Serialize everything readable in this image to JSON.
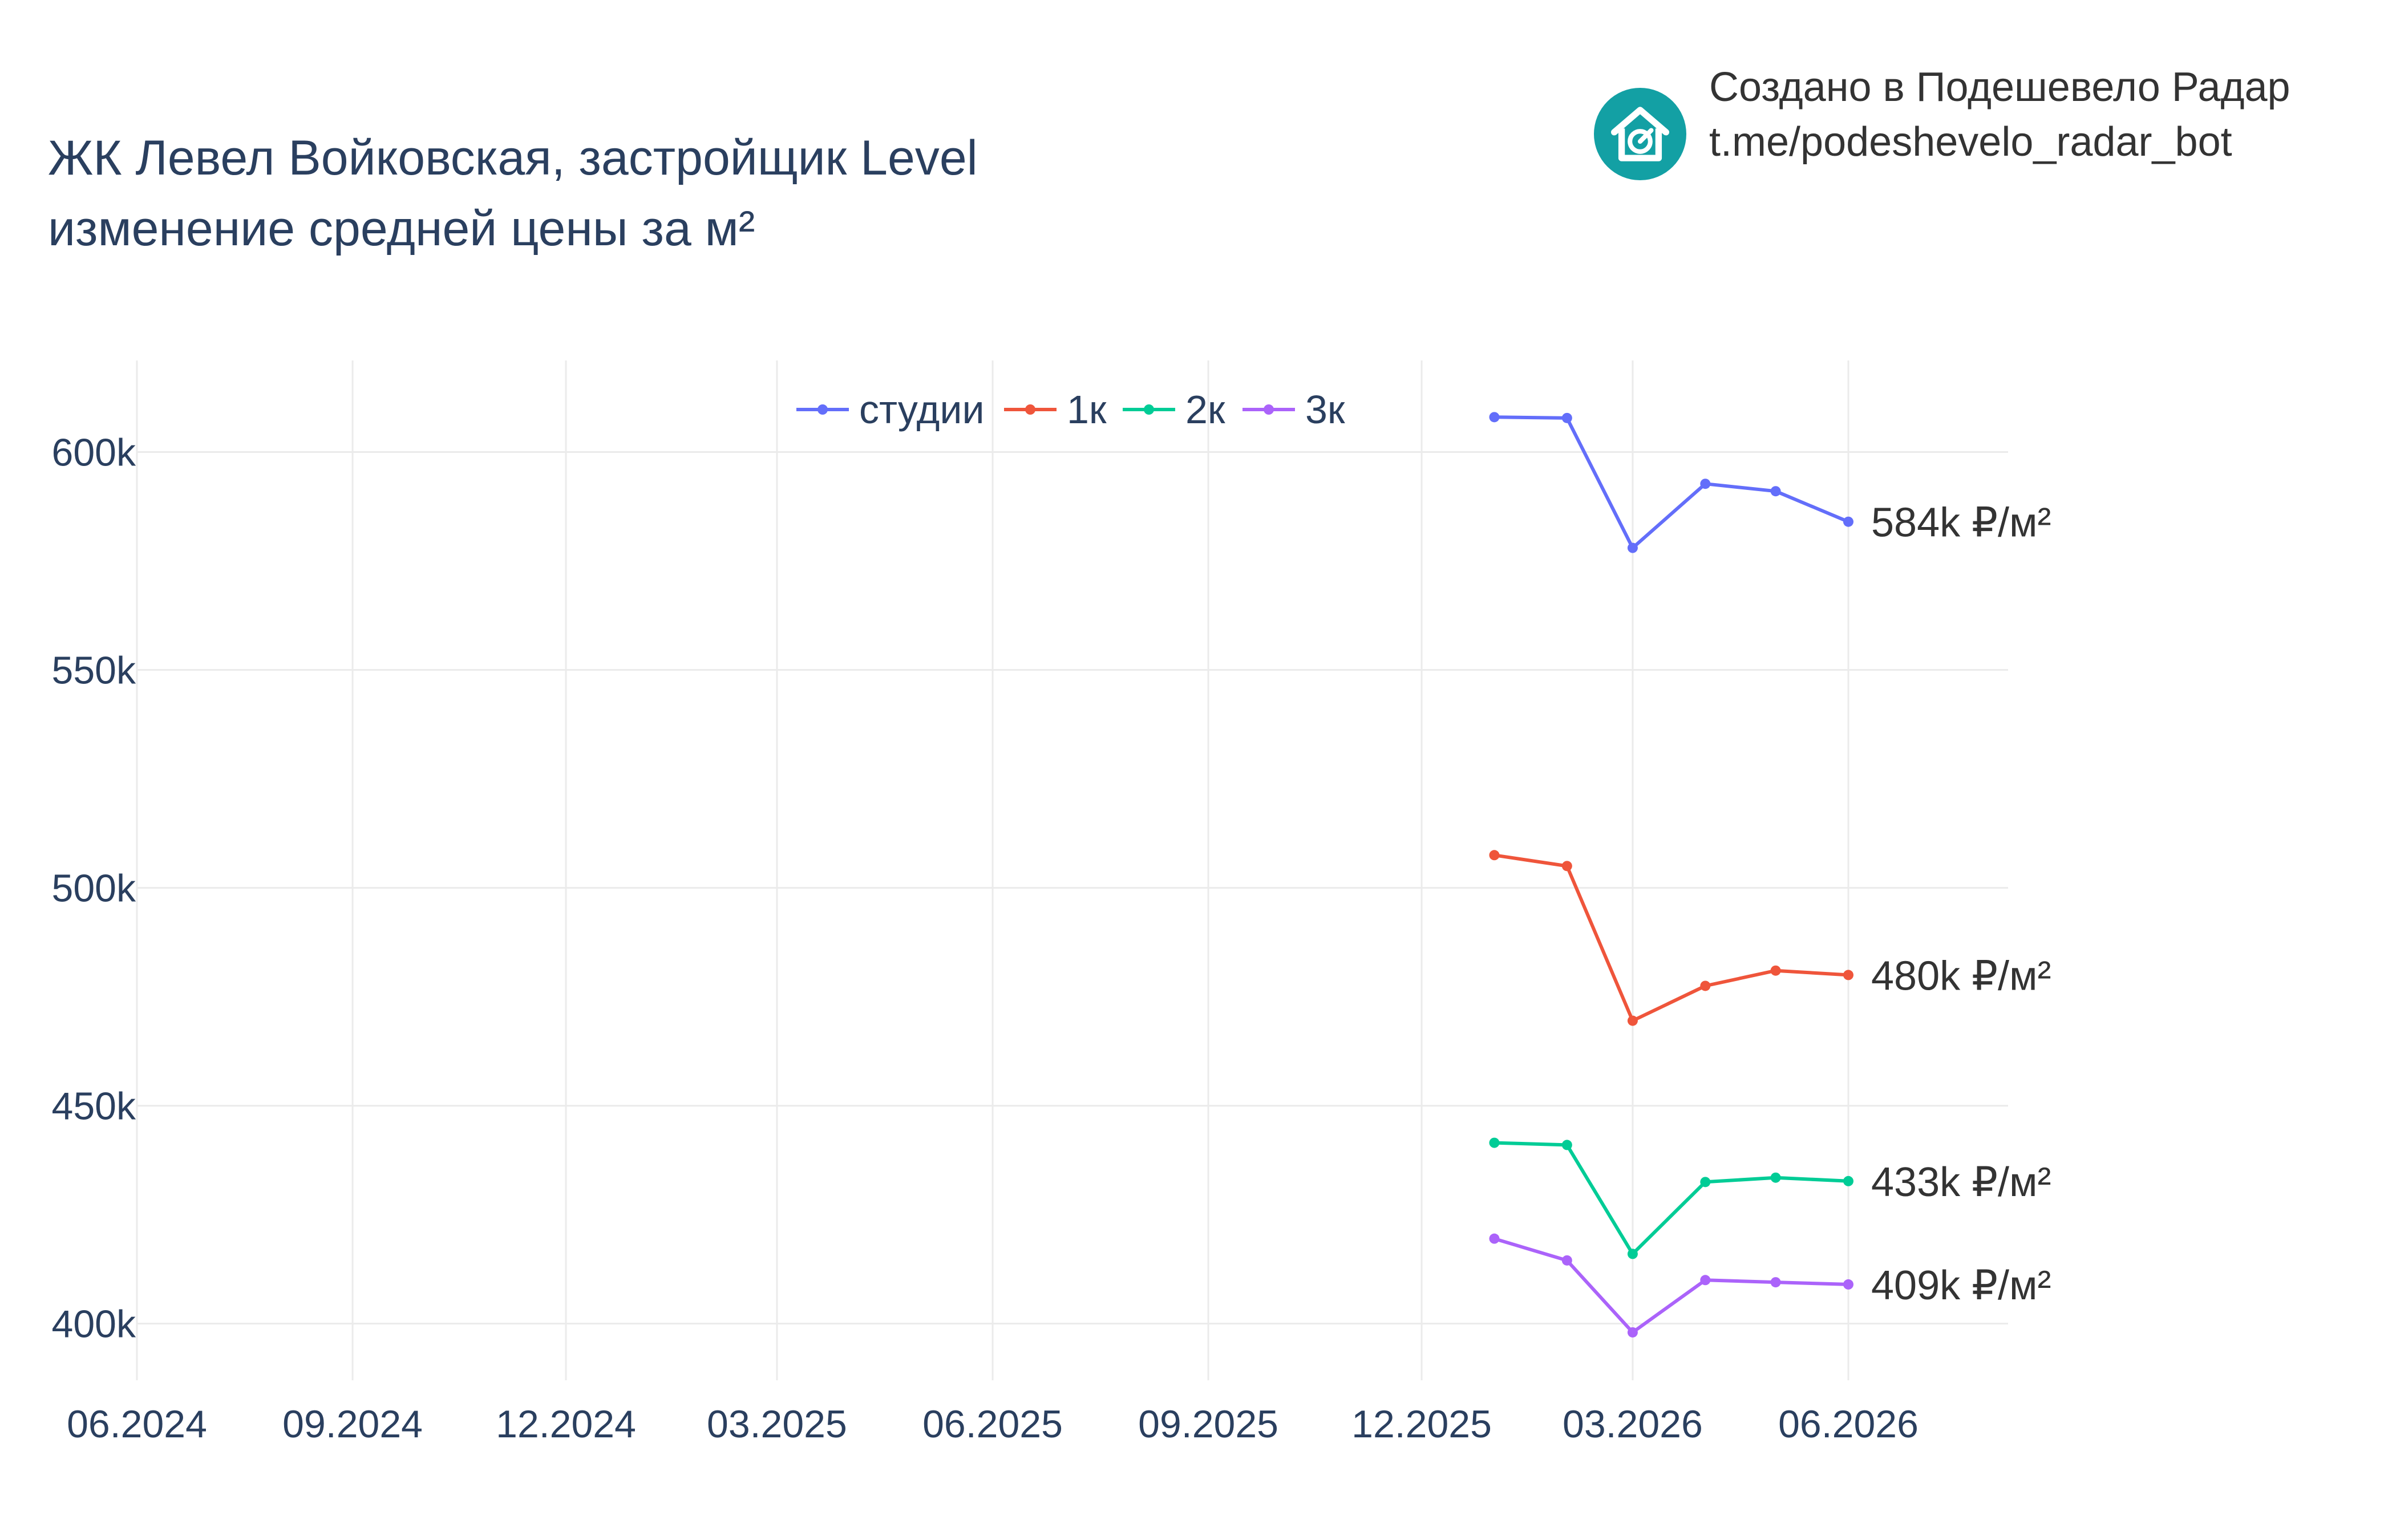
{
  "header": {
    "title_line1": "ЖК Левел Войковская, застройщик Level",
    "title_line2": "изменение средней цены за м²"
  },
  "credit": {
    "line1": "Создано в Подешевело Радар",
    "line2": "t.me/podeshevelo_radar_bot",
    "logo_icon": "house-logo-icon",
    "logo_color": "#13a0a4"
  },
  "chart_data": {
    "type": "line",
    "title": "ЖК Левел Войковская, застройщик Level\nизменение средней цены за м²",
    "xlabel": "",
    "ylabel": "",
    "x_tick_labels": [
      "06.2024",
      "09.2024",
      "12.2024",
      "03.2025",
      "06.2025",
      "09.2025",
      "12.2025",
      "03.2026",
      "06.2026"
    ],
    "y_tick_labels": [
      "600k",
      "550k",
      "500k",
      "450k",
      "400k"
    ],
    "y_ticks": [
      600000,
      550000,
      500000,
      450000,
      400000
    ],
    "ylim": [
      387000,
      621000
    ],
    "xlim": [
      "2024-06-01",
      "2026-09-01"
    ],
    "grid": true,
    "legend_position": "top-center",
    "x": [
      "2026-01-01",
      "2026-02-01",
      "2026-03-01",
      "2026-04-01",
      "2026-05-01",
      "2026-06-01"
    ],
    "series": [
      {
        "name": "студии",
        "color": "#636efa",
        "values": [
          608000,
          607800,
          578000,
          592700,
          591000,
          584000
        ],
        "end_label": "584k ₽/м²"
      },
      {
        "name": "1к",
        "color": "#ef553b",
        "values": [
          507500,
          505000,
          469500,
          477500,
          481000,
          480000
        ],
        "end_label": "480k ₽/м²"
      },
      {
        "name": "2к",
        "color": "#00cc96",
        "values": [
          441500,
          441000,
          416000,
          432500,
          433500,
          432700
        ],
        "end_label": "433k ₽/м²"
      },
      {
        "name": "3к",
        "color": "#ab63fa",
        "values": [
          419500,
          414500,
          398000,
          410000,
          409500,
          409000
        ],
        "end_label": "409k ₽/м²"
      }
    ]
  }
}
